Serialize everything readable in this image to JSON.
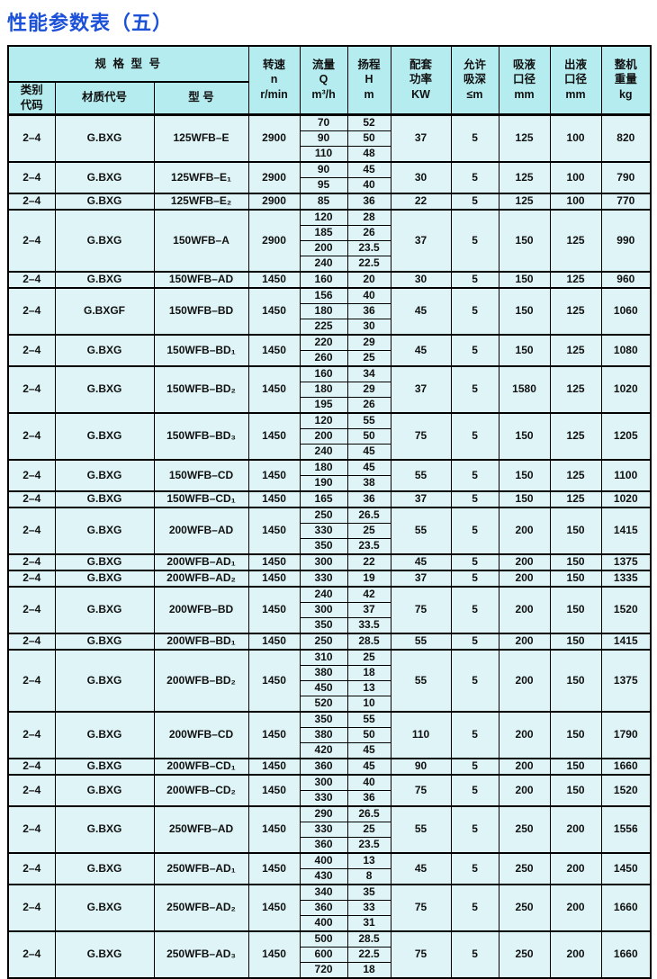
{
  "title": "性能参数表（五）",
  "table": {
    "header": {
      "spec_group": "规 格 型 号",
      "category": "类别\n代码",
      "material": "材质代号",
      "model": "型  号",
      "speed": "转速\nn\nr/min",
      "flow": "流量\nQ\nm³/h",
      "head": "扬程\nH\nm",
      "power": "配套\n功率\nKW",
      "suction_depth": "允许\n吸深\n≤m",
      "suction_diameter": "吸液\n口径\nmm",
      "outlet_diameter": "出液\n口径\nmm",
      "weight": "整机\n重量\nkg"
    },
    "rows": [
      {
        "category": "2–4",
        "material": "G.BXG",
        "model": "125WFB–E",
        "speed": "2900",
        "flow_head": [
          [
            "70",
            "52"
          ],
          [
            "90",
            "50"
          ],
          [
            "110",
            "48"
          ]
        ],
        "power": "37",
        "suction_depth": "5",
        "suction_diameter": "125",
        "outlet_diameter": "100",
        "weight": "820"
      },
      {
        "category": "2–4",
        "material": "G.BXG",
        "model": "125WFB–E₁",
        "speed": "2900",
        "flow_head": [
          [
            "90",
            "45"
          ],
          [
            "95",
            "40"
          ]
        ],
        "power": "30",
        "suction_depth": "5",
        "suction_diameter": "125",
        "outlet_diameter": "100",
        "weight": "790"
      },
      {
        "category": "2–4",
        "material": "G.BXG",
        "model": "125WFB–E₂",
        "speed": "2900",
        "flow_head": [
          [
            "85",
            "36"
          ]
        ],
        "power": "22",
        "suction_depth": "5",
        "suction_diameter": "125",
        "outlet_diameter": "100",
        "weight": "770"
      },
      {
        "category": "2–4",
        "material": "G.BXG",
        "model": "150WFB–A",
        "speed": "2900",
        "flow_head": [
          [
            "120",
            "28"
          ],
          [
            "185",
            "26"
          ],
          [
            "200",
            "23.5"
          ],
          [
            "240",
            "22.5"
          ]
        ],
        "power": "37",
        "suction_depth": "5",
        "suction_diameter": "150",
        "outlet_diameter": "125",
        "weight": "990"
      },
      {
        "category": "2–4",
        "material": "G.BXG",
        "model": "150WFB–AD",
        "speed": "1450",
        "flow_head": [
          [
            "160",
            "20"
          ]
        ],
        "power": "30",
        "suction_depth": "5",
        "suction_diameter": "150",
        "outlet_diameter": "125",
        "weight": "960"
      },
      {
        "category": "2–4",
        "material": "G.BXGF",
        "model": "150WFB–BD",
        "speed": "1450",
        "flow_head": [
          [
            "156",
            "40"
          ],
          [
            "180",
            "36"
          ],
          [
            "225",
            "30"
          ]
        ],
        "power": "45",
        "suction_depth": "5",
        "suction_diameter": "150",
        "outlet_diameter": "125",
        "weight": "1060"
      },
      {
        "category": "2–4",
        "material": "G.BXG",
        "model": "150WFB–BD₁",
        "speed": "1450",
        "flow_head": [
          [
            "220",
            "29"
          ],
          [
            "260",
            "25"
          ]
        ],
        "power": "45",
        "suction_depth": "5",
        "suction_diameter": "150",
        "outlet_diameter": "125",
        "weight": "1080"
      },
      {
        "category": "2–4",
        "material": "G.BXG",
        "model": "150WFB–BD₂",
        "speed": "1450",
        "flow_head": [
          [
            "160",
            "34"
          ],
          [
            "180",
            "29"
          ],
          [
            "195",
            "26"
          ]
        ],
        "power": "37",
        "suction_depth": "5",
        "suction_diameter": "1580",
        "outlet_diameter": "125",
        "weight": "1020"
      },
      {
        "category": "2–4",
        "material": "G.BXG",
        "model": "150WFB–BD₃",
        "speed": "1450",
        "flow_head": [
          [
            "120",
            "55"
          ],
          [
            "200",
            "50"
          ],
          [
            "240",
            "45"
          ]
        ],
        "power": "75",
        "suction_depth": "5",
        "suction_diameter": "150",
        "outlet_diameter": "125",
        "weight": "1205"
      },
      {
        "category": "2–4",
        "material": "G.BXG",
        "model": "150WFB–CD",
        "speed": "1450",
        "flow_head": [
          [
            "180",
            "45"
          ],
          [
            "190",
            "38"
          ]
        ],
        "power": "55",
        "suction_depth": "5",
        "suction_diameter": "150",
        "outlet_diameter": "125",
        "weight": "1100"
      },
      {
        "category": "2–4",
        "material": "G.BXG",
        "model": "150WFB–CD₁",
        "speed": "1450",
        "flow_head": [
          [
            "165",
            "36"
          ]
        ],
        "power": "37",
        "suction_depth": "5",
        "suction_diameter": "150",
        "outlet_diameter": "125",
        "weight": "1020"
      },
      {
        "category": "2–4",
        "material": "G.BXG",
        "model": "200WFB–AD",
        "speed": "1450",
        "flow_head": [
          [
            "250",
            "26.5"
          ],
          [
            "330",
            "25"
          ],
          [
            "350",
            "23.5"
          ]
        ],
        "power": "55",
        "suction_depth": "5",
        "suction_diameter": "200",
        "outlet_diameter": "150",
        "weight": "1415"
      },
      {
        "category": "2–4",
        "material": "G.BXG",
        "model": "200WFB–AD₁",
        "speed": "1450",
        "flow_head": [
          [
            "300",
            "22"
          ]
        ],
        "power": "45",
        "suction_depth": "5",
        "suction_diameter": "200",
        "outlet_diameter": "150",
        "weight": "1375"
      },
      {
        "category": "2–4",
        "material": "G.BXG",
        "model": "200WFB–AD₂",
        "speed": "1450",
        "flow_head": [
          [
            "330",
            "19"
          ]
        ],
        "power": "37",
        "suction_depth": "5",
        "suction_diameter": "200",
        "outlet_diameter": "150",
        "weight": "1335"
      },
      {
        "category": "2–4",
        "material": "G.BXG",
        "model": "200WFB–BD",
        "speed": "1450",
        "flow_head": [
          [
            "240",
            "42"
          ],
          [
            "300",
            "37"
          ],
          [
            "350",
            "33.5"
          ]
        ],
        "power": "75",
        "suction_depth": "5",
        "suction_diameter": "200",
        "outlet_diameter": "150",
        "weight": "1520"
      },
      {
        "category": "2–4",
        "material": "G.BXG",
        "model": "200WFB–BD₁",
        "speed": "1450",
        "flow_head": [
          [
            "250",
            "28.5"
          ]
        ],
        "power": "55",
        "suction_depth": "5",
        "suction_diameter": "200",
        "outlet_diameter": "150",
        "weight": "1415"
      },
      {
        "category": "2–4",
        "material": "G.BXG",
        "model": "200WFB–BD₂",
        "speed": "1450",
        "flow_head": [
          [
            "310",
            "25"
          ],
          [
            "380",
            "18"
          ],
          [
            "450",
            "13"
          ],
          [
            "520",
            "10"
          ]
        ],
        "power": "55",
        "suction_depth": "5",
        "suction_diameter": "200",
        "outlet_diameter": "150",
        "weight": "1375"
      },
      {
        "category": "2–4",
        "material": "G.BXG",
        "model": "200WFB–CD",
        "speed": "1450",
        "flow_head": [
          [
            "350",
            "55"
          ],
          [
            "380",
            "50"
          ],
          [
            "420",
            "45"
          ]
        ],
        "power": "110",
        "suction_depth": "5",
        "suction_diameter": "200",
        "outlet_diameter": "150",
        "weight": "1790"
      },
      {
        "category": "2–4",
        "material": "G.BXG",
        "model": "200WFB–CD₁",
        "speed": "1450",
        "flow_head": [
          [
            "360",
            "45"
          ]
        ],
        "power": "90",
        "suction_depth": "5",
        "suction_diameter": "200",
        "outlet_diameter": "150",
        "weight": "1660"
      },
      {
        "category": "2–4",
        "material": "G.BXG",
        "model": "200WFB–CD₂",
        "speed": "1450",
        "flow_head": [
          [
            "300",
            "40"
          ],
          [
            "330",
            "36"
          ]
        ],
        "power": "75",
        "suction_depth": "5",
        "suction_diameter": "200",
        "outlet_diameter": "150",
        "weight": "1520"
      },
      {
        "category": "2–4",
        "material": "G.BXG",
        "model": "250WFB–AD",
        "speed": "1450",
        "flow_head": [
          [
            "290",
            "26.5"
          ],
          [
            "330",
            "25"
          ],
          [
            "360",
            "23.5"
          ]
        ],
        "power": "55",
        "suction_depth": "5",
        "suction_diameter": "250",
        "outlet_diameter": "200",
        "weight": "1556"
      },
      {
        "category": "2–4",
        "material": "G.BXG",
        "model": "250WFB–AD₁",
        "speed": "1450",
        "flow_head": [
          [
            "400",
            "13"
          ],
          [
            "430",
            "8"
          ]
        ],
        "power": "45",
        "suction_depth": "5",
        "suction_diameter": "250",
        "outlet_diameter": "200",
        "weight": "1450"
      },
      {
        "category": "2–4",
        "material": "G.BXG",
        "model": "250WFB–AD₂",
        "speed": "1450",
        "flow_head": [
          [
            "340",
            "35"
          ],
          [
            "360",
            "33"
          ],
          [
            "400",
            "31"
          ]
        ],
        "power": "75",
        "suction_depth": "5",
        "suction_diameter": "250",
        "outlet_diameter": "200",
        "weight": "1660"
      },
      {
        "category": "2–4",
        "material": "G.BXG",
        "model": "250WFB–AD₃",
        "speed": "1450",
        "flow_head": [
          [
            "500",
            "28.5"
          ],
          [
            "600",
            "22.5"
          ],
          [
            "720",
            "18"
          ]
        ],
        "power": "75",
        "suction_depth": "5",
        "suction_diameter": "250",
        "outlet_diameter": "200",
        "weight": "1660"
      }
    ]
  }
}
